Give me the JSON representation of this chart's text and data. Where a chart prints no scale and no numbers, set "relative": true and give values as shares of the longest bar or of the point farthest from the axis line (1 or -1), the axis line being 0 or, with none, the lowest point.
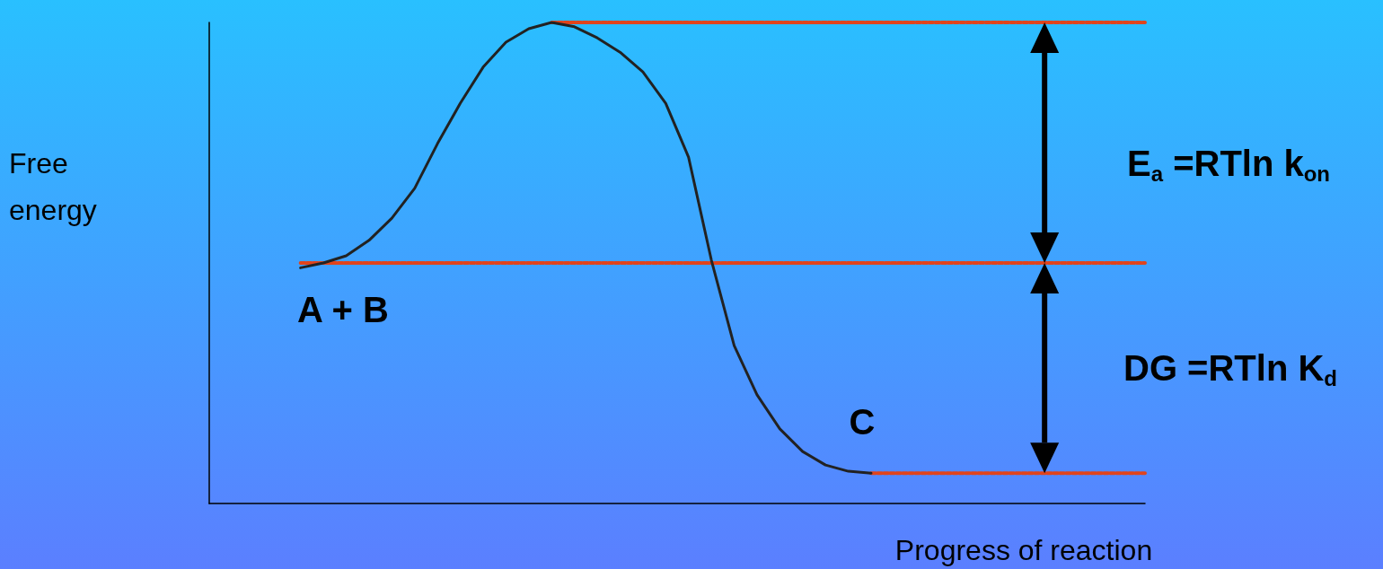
{
  "chart_data": {
    "type": "line",
    "relative": true,
    "xlabel": "Progress of reaction",
    "ylabel": "Free energy",
    "grid": false,
    "marker": "none",
    "categories": [
      null,
      null,
      null,
      null,
      null,
      null,
      null,
      null,
      null,
      null,
      null,
      null,
      null,
      null,
      null,
      null,
      null,
      null,
      null,
      null,
      null,
      null,
      null,
      null,
      null,
      null,
      null,
      null,
      null,
      null,
      null,
      null,
      null,
      null,
      null,
      null,
      null,
      null,
      null,
      null,
      null,
      null
    ],
    "series": [
      {
        "color": "#222222",
        "line_style": "solid",
        "values": [
          null,
          null,
          null,
          null,
          0.49,
          0.5,
          0.515,
          0.547,
          0.593,
          0.655,
          0.748,
          0.832,
          0.907,
          0.959,
          0.987,
          1,
          0.991,
          0.968,
          0.938,
          0.897,
          0.832,
          0.72,
          0.506,
          0.328,
          0.226,
          0.155,
          0.108,
          0.08,
          0.067,
          0.063,
          null,
          null,
          null,
          null,
          null,
          null,
          null,
          null,
          null,
          null,
          null,
          null
        ]
      },
      {
        "color": "#e0441c",
        "line_style": "dashed",
        "values": [
          null,
          null,
          null,
          null,
          null,
          null,
          null,
          null,
          null,
          null,
          null,
          null,
          null,
          null,
          null,
          1,
          1,
          1,
          1,
          1,
          1,
          1,
          1,
          1,
          1,
          1,
          1,
          1,
          1,
          1,
          1,
          1,
          1,
          1,
          1,
          1,
          1,
          1,
          1,
          1,
          1,
          1
        ]
      },
      {
        "color": "#e0441c",
        "line_style": "dashed",
        "values": [
          null,
          null,
          null,
          null,
          0.5,
          0.5,
          0.5,
          0.5,
          0.5,
          0.5,
          0.5,
          0.5,
          0.5,
          0.5,
          0.5,
          0.5,
          0.5,
          0.5,
          0.5,
          0.5,
          0.5,
          0.5,
          0.5,
          0.5,
          0.5,
          0.5,
          0.5,
          0.5,
          0.5,
          0.5,
          0.5,
          0.5,
          0.5,
          0.5,
          0.5,
          0.5,
          0.5,
          0.5,
          0.5,
          0.5,
          0.5,
          0.5
        ]
      },
      {
        "color": "#e0441c",
        "line_style": "dashed",
        "values": [
          null,
          null,
          null,
          null,
          null,
          null,
          null,
          null,
          null,
          null,
          null,
          null,
          null,
          null,
          null,
          null,
          null,
          null,
          null,
          null,
          null,
          null,
          null,
          null,
          null,
          null,
          null,
          null,
          null,
          0.063,
          0.063,
          0.063,
          0.063,
          0.063,
          0.063,
          0.063,
          0.063,
          0.063,
          0.063,
          0.063,
          0.063,
          0.063
        ]
      }
    ],
    "annotations": [
      "A + B",
      "C",
      "E$_{a}$ =RTln k$_{on}$",
      "DG =RTln K$_{d}$"
    ]
  }
}
